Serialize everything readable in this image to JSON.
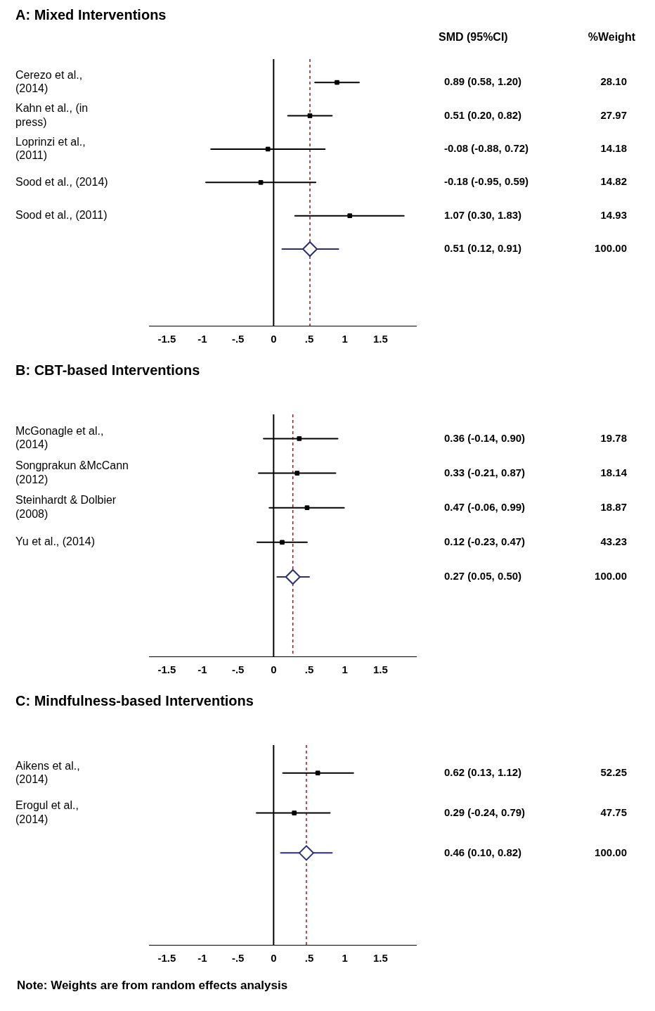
{
  "chart_data": [
    {
      "type": "scatter",
      "orientation": "horizontal",
      "title": "A: Mixed Interventions",
      "categories": [
        "Cerezo et al., (2014)",
        "Kahn et al., (in press)",
        "Loprinzi et al., (2011)",
        "Sood et al., (2014)",
        "Sood et al., (2011)",
        null
      ],
      "series": [
        {
          "type": "scatter",
          "color": "#000000",
          "marker": "square",
          "values": [
            0.89,
            0.51,
            -0.08,
            -0.18,
            1.07,
            null
          ],
          "errors": [
            [
              0.58,
              1.2
            ],
            [
              0.2,
              0.82
            ],
            [
              -0.88,
              0.72
            ],
            [
              -0.95,
              0.59
            ],
            [
              0.3,
              1.83
            ],
            null
          ]
        },
        {
          "type": "scatter",
          "color": "#2b2f7a",
          "marker": "diamond",
          "values": [
            null,
            null,
            null,
            null,
            null,
            0.51
          ],
          "errors": [
            null,
            null,
            null,
            null,
            null,
            [
              0.12,
              0.91
            ]
          ]
        }
      ],
      "xlim": [
        -1.75,
        2.0
      ],
      "xticks": [
        {
          "value": -1.5,
          "label": "-1.5"
        },
        {
          "value": -1,
          "label": "-1"
        },
        {
          "value": -0.5,
          "label": "-.5"
        },
        {
          "value": 0,
          "label": "0"
        },
        {
          "value": 0.5,
          "label": ".5"
        },
        {
          "value": 1,
          "label": "1"
        },
        {
          "value": 1.5,
          "label": "1.5"
        }
      ],
      "ref_lines": [
        {
          "axis": "x",
          "value": 0,
          "color": "#000000",
          "line_style": "solid"
        },
        {
          "axis": "x",
          "value": 0.51,
          "color": "#8b1a1a",
          "line_style": "dashed"
        }
      ],
      "annotations": [
        "SMD (95%CI)",
        "%Weight",
        "0.89 (0.58, 1.20)",
        "28.10",
        "0.51 (0.20, 0.82)",
        "27.97",
        "-0.08 (-0.88, 0.72)",
        "14.18",
        "-0.18 (-0.95, 0.59)",
        "14.82",
        "1.07 (0.30, 1.83)",
        "14.93",
        "0.51 (0.12, 0.91)",
        "100.00"
      ]
    },
    {
      "type": "scatter",
      "orientation": "horizontal",
      "title": "B: CBT-based Interventions",
      "categories": [
        "McGonagle et al., (2014)",
        "Songprakun &McCann (2012)",
        "Steinhardt & Dolbier (2008)",
        "Yu et al., (2014)",
        null
      ],
      "series": [
        {
          "type": "scatter",
          "color": "#000000",
          "marker": "square",
          "values": [
            0.36,
            0.33,
            0.47,
            0.12,
            null
          ],
          "errors": [
            [
              -0.14,
              0.9
            ],
            [
              -0.21,
              0.87
            ],
            [
              -0.06,
              0.99
            ],
            [
              -0.23,
              0.47
            ],
            null
          ]
        },
        {
          "type": "scatter",
          "color": "#2b2f7a",
          "marker": "diamond",
          "values": [
            null,
            null,
            null,
            null,
            0.27
          ],
          "errors": [
            null,
            null,
            null,
            null,
            [
              0.05,
              0.5
            ]
          ]
        }
      ],
      "xlim": [
        -1.75,
        2.0
      ],
      "xticks": [
        {
          "value": -1.5,
          "label": "-1.5"
        },
        {
          "value": -1,
          "label": "-1"
        },
        {
          "value": -0.5,
          "label": "-.5"
        },
        {
          "value": 0,
          "label": "0"
        },
        {
          "value": 0.5,
          "label": ".5"
        },
        {
          "value": 1,
          "label": "1"
        },
        {
          "value": 1.5,
          "label": "1.5"
        }
      ],
      "ref_lines": [
        {
          "axis": "x",
          "value": 0,
          "color": "#000000",
          "line_style": "solid"
        },
        {
          "axis": "x",
          "value": 0.27,
          "color": "#8b1a1a",
          "line_style": "dashed"
        }
      ],
      "annotations": [
        "0.36 (-0.14, 0.90)",
        "19.78",
        "0.33 (-0.21, 0.87)",
        "18.14",
        "0.47 (-0.06, 0.99)",
        "18.87",
        "0.12 (-0.23, 0.47)",
        "43.23",
        "0.27 (0.05, 0.50)",
        "100.00"
      ]
    },
    {
      "type": "scatter",
      "orientation": "horizontal",
      "title": "C: Mindfulness-based Interventions",
      "categories": [
        "Aikens et al., (2014)",
        "Erogul et al., (2014)",
        null
      ],
      "series": [
        {
          "type": "scatter",
          "color": "#000000",
          "marker": "square",
          "values": [
            0.62,
            0.29,
            null
          ],
          "errors": [
            [
              0.13,
              1.12
            ],
            [
              -0.24,
              0.79
            ],
            null
          ]
        },
        {
          "type": "scatter",
          "color": "#2b2f7a",
          "marker": "diamond",
          "values": [
            null,
            null,
            0.46
          ],
          "errors": [
            null,
            null,
            [
              0.1,
              0.82
            ]
          ]
        }
      ],
      "xlim": [
        -1.75,
        2.0
      ],
      "xticks": [
        {
          "value": -1.5,
          "label": "-1.5"
        },
        {
          "value": -1,
          "label": "-1"
        },
        {
          "value": -0.5,
          "label": "-.5"
        },
        {
          "value": 0,
          "label": "0"
        },
        {
          "value": 0.5,
          "label": ".5"
        },
        {
          "value": 1,
          "label": "1"
        },
        {
          "value": 1.5,
          "label": "1.5"
        }
      ],
      "ref_lines": [
        {
          "axis": "x",
          "value": 0,
          "color": "#000000",
          "line_style": "solid"
        },
        {
          "axis": "x",
          "value": 0.46,
          "color": "#8b1a1a",
          "line_style": "dashed"
        }
      ],
      "annotations": [
        "0.62 (0.13, 1.12)",
        "52.25",
        "0.29 (-0.24, 0.79)",
        "47.75",
        "0.46 (0.10, 0.82)",
        "100.00"
      ]
    },
    {
      "type": "other",
      "annotations": [
        "Note: Weights are from random effects analysis"
      ]
    }
  ]
}
